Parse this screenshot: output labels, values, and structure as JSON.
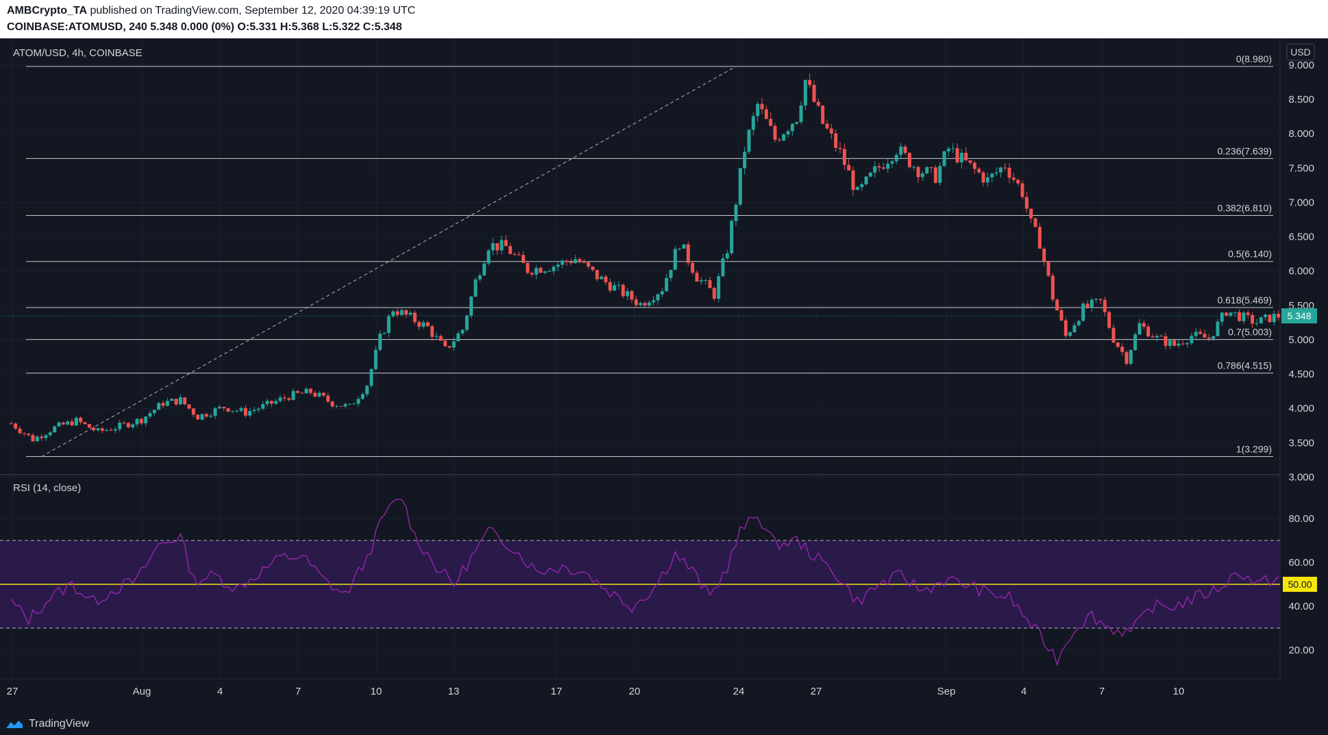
{
  "header": {
    "author": "AMBCrypto_TA",
    "published_text": " published on TradingView.com, September 12, 2020 04:39:19 UTC",
    "symbol": "COINBASE:ATOMUSD, 240",
    "quote": " 5.348 0.000 (0%) ",
    "o_label": "O:",
    "o_value": "5.331",
    "h_label": " H:",
    "h_value": "5.368",
    "l_label": " L:",
    "l_value": "5.322",
    "c_label": " C:",
    "c_value": "5.348"
  },
  "footer": {
    "brand": "TradingView"
  },
  "colors": {
    "background": "#131722",
    "up": "#26a69a",
    "down": "#ef5350",
    "rsi_line": "#9c27b0",
    "rsi_band": "#2a1a4a",
    "rsi_mid": "#f5e50a",
    "price_badge": "#26a69a"
  },
  "chart_data": [
    {
      "type": "candlestick",
      "title": "ATOM/USD, 4h, COINBASE",
      "currency_label": "USD",
      "y_ticks": [
        "3.000",
        "3.500",
        "4.000",
        "4.500",
        "5.000",
        "5.500",
        "6.000",
        "6.500",
        "7.000",
        "7.500",
        "8.000",
        "8.500",
        "9.000"
      ],
      "ylim": [
        2.75,
        9.3
      ],
      "x_ticks": [
        "27",
        "Aug",
        "4",
        "7",
        "10",
        "13",
        "17",
        "20",
        "24",
        "27",
        "Sep",
        "4",
        "7",
        "10"
      ],
      "current_price_label": "5.348",
      "current_price": 5.348,
      "fib_levels": [
        {
          "label": "0(8.980)",
          "value": 8.98
        },
        {
          "label": "0.236(7.639)",
          "value": 7.639
        },
        {
          "label": "0.382(6.810)",
          "value": 6.81
        },
        {
          "label": "0.5(6.140)",
          "value": 6.14
        },
        {
          "label": "0.618(5.469)",
          "value": 5.469
        },
        {
          "label": "0.7(5.003)",
          "value": 5.003
        },
        {
          "label": "0.786(4.515)",
          "value": 4.515
        },
        {
          "label": "1(3.299)",
          "value": 3.299
        }
      ],
      "trend_line": {
        "from_date": "2020-07-27 16:00",
        "from_value": 3.299,
        "to_date": "2020-08-23 08:00",
        "to_value": 8.98
      },
      "series": [
        {
          "date": "2020-07-26 12:00",
          "value": 3.78
        },
        {
          "date": "2020-07-27 08:00",
          "value": 3.55
        },
        {
          "date": "2020-07-28 04:00",
          "value": 3.72
        },
        {
          "date": "2020-07-29 00:00",
          "value": 3.82
        },
        {
          "date": "2020-07-29 20:00",
          "value": 3.66
        },
        {
          "date": "2020-07-30 16:00",
          "value": 3.74
        },
        {
          "date": "2020-07-31 12:00",
          "value": 3.84
        },
        {
          "date": "2020-08-01 08:00",
          "value": 4.08
        },
        {
          "date": "2020-08-02 00:00",
          "value": 4.12
        },
        {
          "date": "2020-08-02 16:00",
          "value": 3.88
        },
        {
          "date": "2020-08-03 16:00",
          "value": 4.02
        },
        {
          "date": "2020-08-04 12:00",
          "value": 3.94
        },
        {
          "date": "2020-08-05 08:00",
          "value": 4.05
        },
        {
          "date": "2020-08-06 04:00",
          "value": 4.18
        },
        {
          "date": "2020-08-07 00:00",
          "value": 4.24
        },
        {
          "date": "2020-08-07 20:00",
          "value": 4.08
        },
        {
          "date": "2020-08-08 12:00",
          "value": 4.02
        },
        {
          "date": "2020-08-09 04:00",
          "value": 4.35
        },
        {
          "date": "2020-08-09 16:00",
          "value": 5.02
        },
        {
          "date": "2020-08-10 04:00",
          "value": 5.45
        },
        {
          "date": "2020-08-10 20:00",
          "value": 5.32
        },
        {
          "date": "2020-08-11 12:00",
          "value": 5.18
        },
        {
          "date": "2020-08-12 04:00",
          "value": 4.85
        },
        {
          "date": "2020-08-12 20:00",
          "value": 5.15
        },
        {
          "date": "2020-08-13 08:00",
          "value": 5.85
        },
        {
          "date": "2020-08-13 20:00",
          "value": 6.38
        },
        {
          "date": "2020-08-14 12:00",
          "value": 6.35
        },
        {
          "date": "2020-08-15 08:00",
          "value": 6.02
        },
        {
          "date": "2020-08-16 08:00",
          "value": 6.08
        },
        {
          "date": "2020-08-17 04:00",
          "value": 6.18
        },
        {
          "date": "2020-08-18 00:00",
          "value": 5.92
        },
        {
          "date": "2020-08-18 20:00",
          "value": 5.72
        },
        {
          "date": "2020-08-19 16:00",
          "value": 5.52
        },
        {
          "date": "2020-08-20 12:00",
          "value": 5.75
        },
        {
          "date": "2020-08-21 04:00",
          "value": 6.42
        },
        {
          "date": "2020-08-21 20:00",
          "value": 5.92
        },
        {
          "date": "2020-08-22 12:00",
          "value": 5.66
        },
        {
          "date": "2020-08-23 00:00",
          "value": 6.32
        },
        {
          "date": "2020-08-23 08:00",
          "value": 7.02
        },
        {
          "date": "2020-08-23 16:00",
          "value": 7.78
        },
        {
          "date": "2020-08-24 04:00",
          "value": 8.42
        },
        {
          "date": "2020-08-24 20:00",
          "value": 7.92
        },
        {
          "date": "2020-08-25 16:00",
          "value": 8.25
        },
        {
          "date": "2020-08-26 00:00",
          "value": 8.78
        },
        {
          "date": "2020-08-26 16:00",
          "value": 8.15
        },
        {
          "date": "2020-08-27 08:00",
          "value": 7.72
        },
        {
          "date": "2020-08-28 00:00",
          "value": 7.12
        },
        {
          "date": "2020-08-28 16:00",
          "value": 7.45
        },
        {
          "date": "2020-08-29 12:00",
          "value": 7.78
        },
        {
          "date": "2020-08-30 08:00",
          "value": 7.48
        },
        {
          "date": "2020-08-31 00:00",
          "value": 7.38
        },
        {
          "date": "2020-08-31 12:00",
          "value": 7.78
        },
        {
          "date": "2020-09-01 08:00",
          "value": 7.52
        },
        {
          "date": "2020-09-02 00:00",
          "value": 7.32
        },
        {
          "date": "2020-09-02 16:00",
          "value": 7.55
        },
        {
          "date": "2020-09-03 08:00",
          "value": 7.15
        },
        {
          "date": "2020-09-03 16:00",
          "value": 6.68
        },
        {
          "date": "2020-09-04 00:00",
          "value": 6.42
        },
        {
          "date": "2020-09-04 12:00",
          "value": 5.62
        },
        {
          "date": "2020-09-05 00:00",
          "value": 5.05
        },
        {
          "date": "2020-09-05 16:00",
          "value": 5.45
        },
        {
          "date": "2020-09-06 08:00",
          "value": 5.55
        },
        {
          "date": "2020-09-06 20:00",
          "value": 5.02
        },
        {
          "date": "2020-09-07 08:00",
          "value": 4.72
        },
        {
          "date": "2020-09-07 20:00",
          "value": 5.22
        },
        {
          "date": "2020-09-08 12:00",
          "value": 5.02
        },
        {
          "date": "2020-09-09 04:00",
          "value": 4.92
        },
        {
          "date": "2020-09-09 20:00",
          "value": 5.06
        },
        {
          "date": "2020-09-10 12:00",
          "value": 5.02
        },
        {
          "date": "2020-09-11 04:00",
          "value": 5.42
        },
        {
          "date": "2020-09-11 20:00",
          "value": 5.32
        },
        {
          "date": "2020-09-12 08:00",
          "value": 5.25
        },
        {
          "date": "2020-09-12 20:00",
          "value": 5.32
        },
        {
          "date": "2020-09-13 04:00",
          "value": 5.348
        }
      ]
    },
    {
      "type": "line",
      "title": "RSI (14, close)",
      "y_ticks": [
        "20.00",
        "40.00",
        "60.00",
        "80.00"
      ],
      "ylim": [
        10,
        92
      ],
      "upper_band": 70,
      "lower_band": 30,
      "midline": 50,
      "midline_label": "50.00",
      "series": [
        {
          "date": "2020-07-26 12:00",
          "value": 42
        },
        {
          "date": "2020-07-27 04:00",
          "value": 34
        },
        {
          "date": "2020-07-28 00:00",
          "value": 44
        },
        {
          "date": "2020-07-28 20:00",
          "value": 50
        },
        {
          "date": "2020-07-29 16:00",
          "value": 42
        },
        {
          "date": "2020-07-30 12:00",
          "value": 48
        },
        {
          "date": "2020-07-31 08:00",
          "value": 52
        },
        {
          "date": "2020-08-01 04:00",
          "value": 68
        },
        {
          "date": "2020-08-02 00:00",
          "value": 72
        },
        {
          "date": "2020-08-02 12:00",
          "value": 52
        },
        {
          "date": "2020-08-03 08:00",
          "value": 54
        },
        {
          "date": "2020-08-04 04:00",
          "value": 48
        },
        {
          "date": "2020-08-05 00:00",
          "value": 55
        },
        {
          "date": "2020-08-05 20:00",
          "value": 62
        },
        {
          "date": "2020-08-06 16:00",
          "value": 63
        },
        {
          "date": "2020-08-07 12:00",
          "value": 52
        },
        {
          "date": "2020-08-08 08:00",
          "value": 45
        },
        {
          "date": "2020-08-09 04:00",
          "value": 62
        },
        {
          "date": "2020-08-09 20:00",
          "value": 82
        },
        {
          "date": "2020-08-10 12:00",
          "value": 90
        },
        {
          "date": "2020-08-11 00:00",
          "value": 72
        },
        {
          "date": "2020-08-11 20:00",
          "value": 58
        },
        {
          "date": "2020-08-12 12:00",
          "value": 50
        },
        {
          "date": "2020-08-13 04:00",
          "value": 62
        },
        {
          "date": "2020-08-13 20:00",
          "value": 74
        },
        {
          "date": "2020-08-14 16:00",
          "value": 68
        },
        {
          "date": "2020-08-15 16:00",
          "value": 56
        },
        {
          "date": "2020-08-16 16:00",
          "value": 58
        },
        {
          "date": "2020-08-17 12:00",
          "value": 56
        },
        {
          "date": "2020-08-18 08:00",
          "value": 48
        },
        {
          "date": "2020-08-19 08:00",
          "value": 40
        },
        {
          "date": "2020-08-20 04:00",
          "value": 48
        },
        {
          "date": "2020-08-21 00:00",
          "value": 64
        },
        {
          "date": "2020-08-21 16:00",
          "value": 56
        },
        {
          "date": "2020-08-22 08:00",
          "value": 44
        },
        {
          "date": "2020-08-23 00:00",
          "value": 58
        },
        {
          "date": "2020-08-23 12:00",
          "value": 74
        },
        {
          "date": "2020-08-24 04:00",
          "value": 82
        },
        {
          "date": "2020-08-24 20:00",
          "value": 68
        },
        {
          "date": "2020-08-25 16:00",
          "value": 70
        },
        {
          "date": "2020-08-26 08:00",
          "value": 63
        },
        {
          "date": "2020-08-27 04:00",
          "value": 55
        },
        {
          "date": "2020-08-28 00:00",
          "value": 42
        },
        {
          "date": "2020-08-28 20:00",
          "value": 50
        },
        {
          "date": "2020-08-29 16:00",
          "value": 54
        },
        {
          "date": "2020-08-30 12:00",
          "value": 47
        },
        {
          "date": "2020-08-31 08:00",
          "value": 52
        },
        {
          "date": "2020-09-01 04:00",
          "value": 50
        },
        {
          "date": "2020-09-02 00:00",
          "value": 46
        },
        {
          "date": "2020-09-02 20:00",
          "value": 44
        },
        {
          "date": "2020-09-03 12:00",
          "value": 34
        },
        {
          "date": "2020-09-04 04:00",
          "value": 24
        },
        {
          "date": "2020-09-04 16:00",
          "value": 16
        },
        {
          "date": "2020-09-05 08:00",
          "value": 30
        },
        {
          "date": "2020-09-06 00:00",
          "value": 36
        },
        {
          "date": "2020-09-06 16:00",
          "value": 30
        },
        {
          "date": "2020-09-07 12:00",
          "value": 28
        },
        {
          "date": "2020-09-08 08:00",
          "value": 40
        },
        {
          "date": "2020-09-09 04:00",
          "value": 40
        },
        {
          "date": "2020-09-10 00:00",
          "value": 44
        },
        {
          "date": "2020-09-10 20:00",
          "value": 48
        },
        {
          "date": "2020-09-11 16:00",
          "value": 56
        },
        {
          "date": "2020-09-12 08:00",
          "value": 50
        },
        {
          "date": "2020-09-13 04:00",
          "value": 53
        }
      ]
    }
  ]
}
